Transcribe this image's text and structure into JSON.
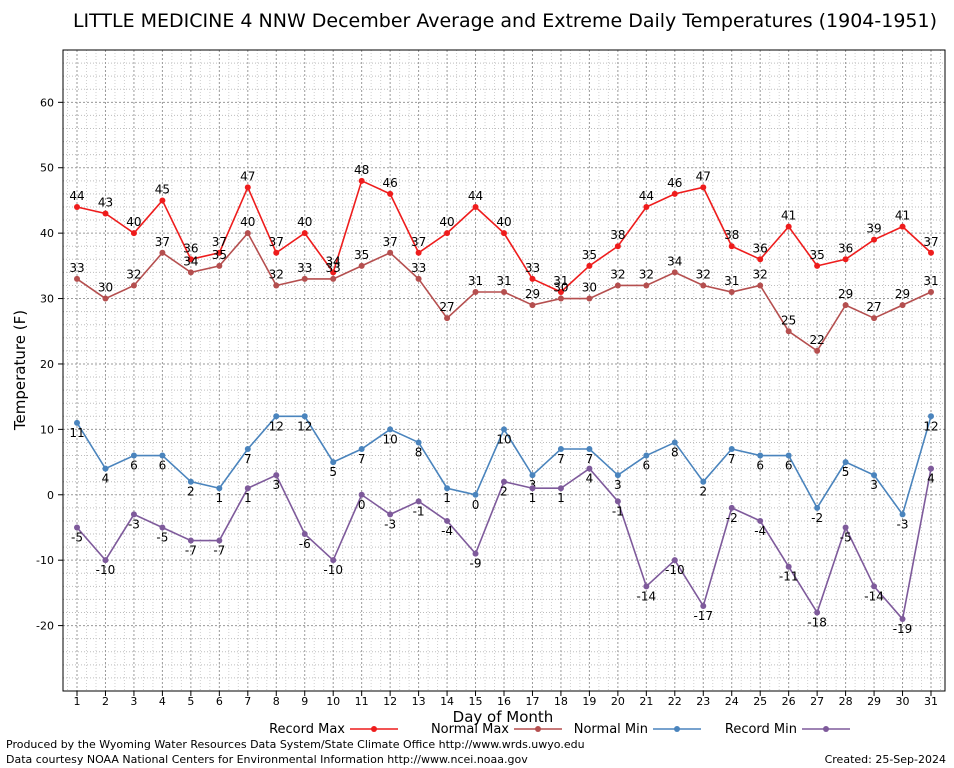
{
  "chart_data": {
    "type": "line",
    "title": "LITTLE MEDICINE 4 NNW December Average and Extreme Daily Temperatures (1904-1951)",
    "xlabel": "Day of Month",
    "ylabel": "Temperature (F)",
    "ylim": [
      -30,
      68
    ],
    "yticks": [
      -20,
      -10,
      0,
      10,
      20,
      30,
      40,
      50,
      60
    ],
    "categories": [
      "1",
      "2",
      "3",
      "4",
      "5",
      "6",
      "7",
      "8",
      "9",
      "10",
      "11",
      "12",
      "13",
      "14",
      "15",
      "16",
      "17",
      "18",
      "19",
      "20",
      "21",
      "22",
      "23",
      "24",
      "25",
      "26",
      "27",
      "28",
      "29",
      "30",
      "31"
    ],
    "grid": true,
    "legend_position": "bottom",
    "series": [
      {
        "name": "Record Max",
        "color": "#ee1c1c",
        "values": [
          44,
          43,
          40,
          45,
          36,
          37,
          47,
          37,
          40,
          34,
          48,
          46,
          37,
          40,
          44,
          40,
          33,
          31,
          35,
          38,
          44,
          46,
          47,
          38,
          36,
          41,
          35,
          36,
          39,
          41,
          37
        ]
      },
      {
        "name": "Normal Max",
        "color": "#b54f4f",
        "values": [
          33,
          30,
          32,
          37,
          34,
          35,
          40,
          32,
          33,
          33,
          35,
          37,
          33,
          27,
          31,
          31,
          29,
          30,
          30,
          32,
          32,
          34,
          32,
          31,
          32,
          25,
          22,
          29,
          27,
          29,
          31
        ]
      },
      {
        "name": "Normal Min",
        "color": "#4a84bd",
        "values": [
          11,
          4,
          6,
          6,
          2,
          1,
          7,
          12,
          12,
          5,
          7,
          10,
          8,
          1,
          0,
          10,
          3,
          7,
          7,
          3,
          6,
          8,
          2,
          7,
          6,
          6,
          -2,
          5,
          3,
          -3,
          12
        ]
      },
      {
        "name": "Record Min",
        "color": "#7e5a9b",
        "values": [
          -5,
          -10,
          -3,
          -5,
          -7,
          -7,
          1,
          3,
          -6,
          -10,
          0,
          -3,
          -1,
          -4,
          -9,
          2,
          1,
          1,
          4,
          -1,
          -14,
          -10,
          -17,
          -2,
          -4,
          -11,
          -18,
          -5,
          -14,
          -19,
          4
        ]
      }
    ]
  },
  "footer": {
    "produced_by": "Produced by the Wyoming Water Resources Data System/State Climate Office http://www.wrds.uwyo.edu",
    "courtesy": "Data courtesy NOAA National Centers for Environmental Information http://www.ncei.noaa.gov",
    "created": "Created:  25-Sep-2024"
  }
}
